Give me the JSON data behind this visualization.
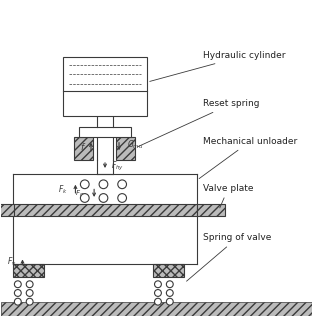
{
  "labels": {
    "hydraulic_cylinder": "Hydraulic cylinder",
    "reset_spring": "Reset spring",
    "mechanical_unloader": "Mechanical unloader",
    "valve_plate": "Valve plate",
    "spring_of_valve": "Spring of valve"
  },
  "font_size": 6.5,
  "lc": "#3a3a3a",
  "lw": 0.8
}
